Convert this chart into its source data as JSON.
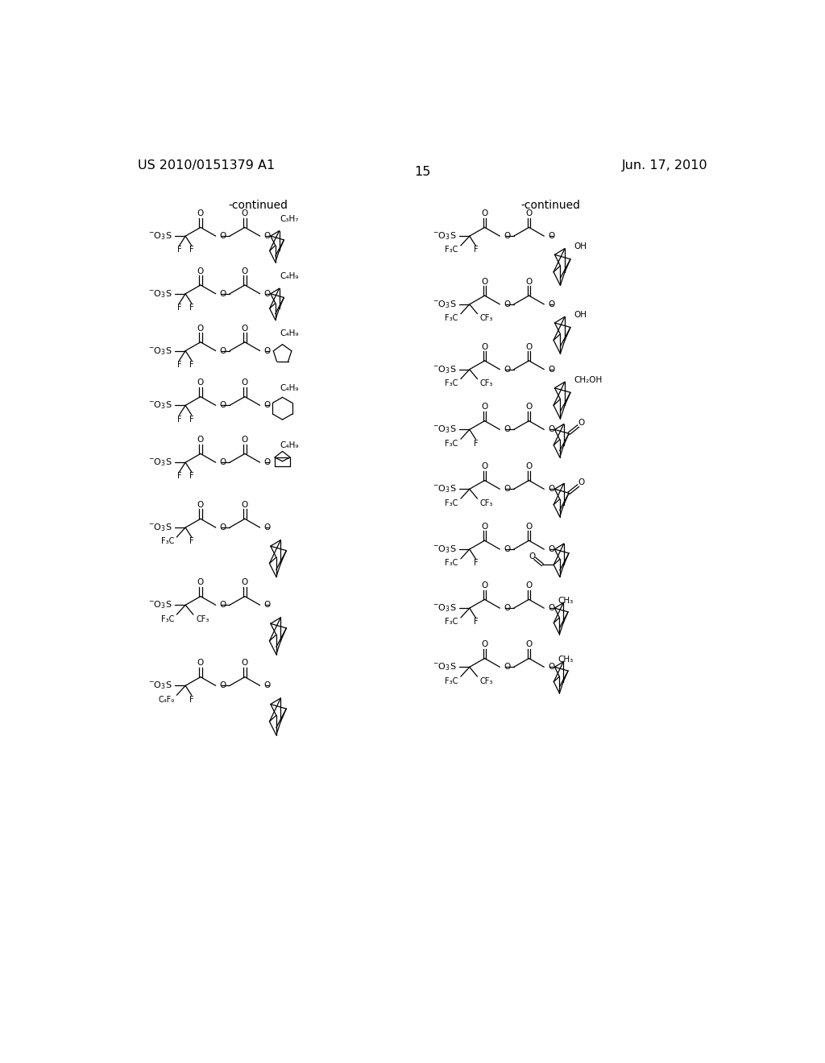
{
  "background_color": "#ffffff",
  "header_left": "US 2010/0151379 A1",
  "header_right": "Jun. 17, 2010",
  "page_number": "15",
  "continued_left": "-continued",
  "continued_right": "-continued"
}
